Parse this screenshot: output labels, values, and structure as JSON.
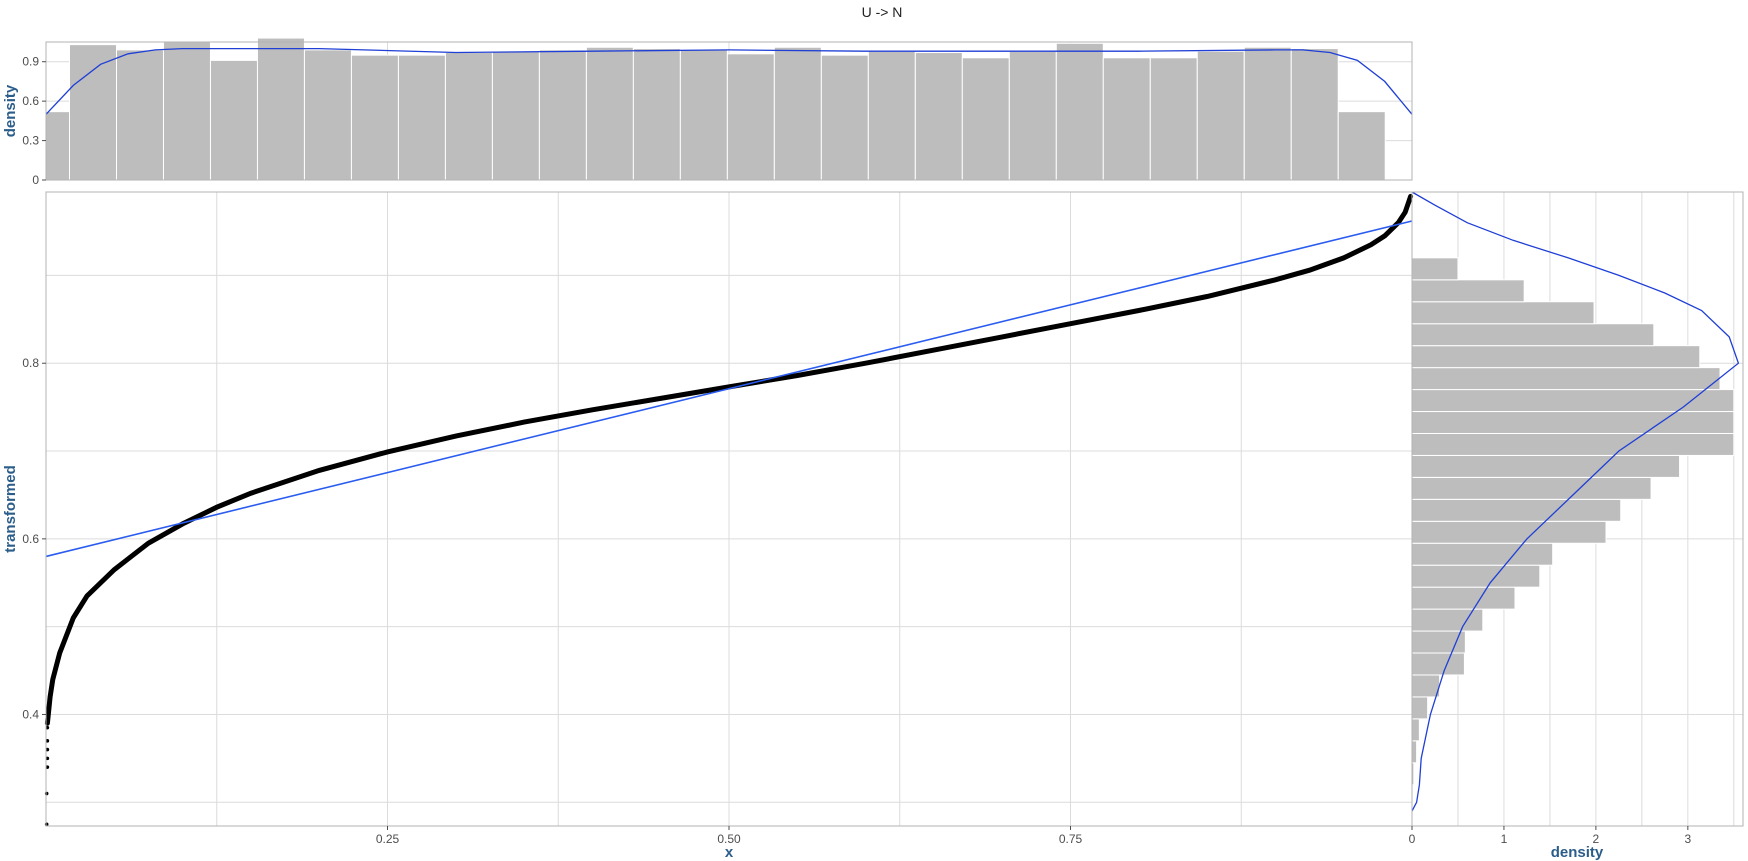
{
  "chart_data": [
    {
      "id": "top-histogram",
      "type": "bar",
      "title": "U -> N",
      "xlabel": "",
      "ylabel": "density",
      "xlim": [
        0,
        1
      ],
      "ylim": [
        0,
        1.05
      ],
      "yticks": [
        "0",
        "0.3",
        "0.6",
        "0.9"
      ],
      "ytick_values": [
        0,
        0.3,
        0.6,
        0.9
      ],
      "bin_width": 0.0344,
      "bin_start": -0.0172,
      "values": [
        0.52,
        1.03,
        0.99,
        1.05,
        0.91,
        1.08,
        0.99,
        0.95,
        0.95,
        0.97,
        0.98,
        0.99,
        1.01,
        1.0,
        0.99,
        0.96,
        1.01,
        0.95,
        0.98,
        0.97,
        0.93,
        0.98,
        1.04,
        0.93,
        0.93,
        0.98,
        1.01,
        1.0,
        0.52
      ],
      "density_x": [
        0,
        0.02,
        0.04,
        0.06,
        0.08,
        0.1,
        0.2,
        0.3,
        0.4,
        0.5,
        0.6,
        0.7,
        0.8,
        0.9,
        0.92,
        0.94,
        0.96,
        0.98,
        1.0
      ],
      "density_y": [
        0.5,
        0.72,
        0.88,
        0.96,
        0.99,
        1.0,
        1.0,
        0.97,
        0.98,
        0.99,
        0.98,
        0.98,
        0.98,
        0.99,
        0.99,
        0.97,
        0.91,
        0.75,
        0.5
      ]
    },
    {
      "id": "main-scatter",
      "type": "scatter",
      "title": "",
      "xlabel": "x",
      "ylabel": "transformed",
      "xlim": [
        0,
        1
      ],
      "ylim": [
        0.273,
        0.995
      ],
      "xticks": [
        "0.25",
        "0.50",
        "0.75"
      ],
      "xtick_values": [
        0.25,
        0.5,
        0.75
      ],
      "yticks": [
        "0.4",
        "0.6",
        "0.8"
      ],
      "ytick_values": [
        0.4,
        0.6,
        0.8
      ],
      "curve_x": [
        0.001,
        0.003,
        0.005,
        0.01,
        0.02,
        0.03,
        0.05,
        0.075,
        0.1,
        0.125,
        0.15,
        0.2,
        0.25,
        0.3,
        0.35,
        0.4,
        0.45,
        0.5,
        0.55,
        0.6,
        0.65,
        0.7,
        0.75,
        0.8,
        0.85,
        0.9,
        0.925,
        0.95,
        0.97,
        0.98,
        0.99,
        0.995,
        0.999
      ],
      "curve_y": [
        0.39,
        0.42,
        0.44,
        0.47,
        0.51,
        0.535,
        0.565,
        0.595,
        0.617,
        0.636,
        0.652,
        0.678,
        0.699,
        0.717,
        0.733,
        0.747,
        0.76,
        0.773,
        0.786,
        0.8,
        0.815,
        0.83,
        0.845,
        0.86,
        0.876,
        0.895,
        0.906,
        0.92,
        0.935,
        0.945,
        0.96,
        0.972,
        0.99
      ],
      "sparse_points_x": [
        0.001,
        0.001,
        0.001,
        0.001,
        0.001,
        0.0005,
        0.0005
      ],
      "sparse_points_y": [
        0.385,
        0.37,
        0.36,
        0.35,
        0.34,
        0.31,
        0.275
      ],
      "fit_x": [
        0,
        1
      ],
      "fit_y": [
        0.58,
        0.962
      ]
    },
    {
      "id": "right-histogram",
      "type": "bar",
      "orientation": "horizontal",
      "title": "",
      "xlabel": "density",
      "ylabel": "",
      "xlim": [
        0,
        3.6
      ],
      "xticks": [
        "0",
        "1",
        "2",
        "3"
      ],
      "xtick_values": [
        0,
        1,
        2,
        3
      ],
      "bin_edges": [
        0.295,
        0.32,
        0.345,
        0.37,
        0.395,
        0.42,
        0.445,
        0.47,
        0.495,
        0.52,
        0.545,
        0.57,
        0.595,
        0.62,
        0.645,
        0.67,
        0.695,
        0.72,
        0.745,
        0.77,
        0.795,
        0.82,
        0.845,
        0.87,
        0.895,
        0.92,
        0.945,
        0.97,
        0.995
      ],
      "values": [
        0.0,
        0.02,
        0.05,
        0.08,
        0.17,
        0.3,
        0.57,
        0.58,
        0.77,
        1.12,
        1.39,
        1.53,
        2.11,
        2.27,
        2.6,
        2.91,
        3.5,
        3.5,
        3.5,
        3.35,
        3.13,
        2.63,
        1.98,
        1.22,
        0.5,
        0.0,
        0.0,
        0.0
      ],
      "density_y": [
        0.29,
        0.3,
        0.32,
        0.35,
        0.4,
        0.45,
        0.5,
        0.55,
        0.6,
        0.65,
        0.7,
        0.75,
        0.8,
        0.83,
        0.86,
        0.88,
        0.9,
        0.92,
        0.94,
        0.96,
        0.98,
        0.995
      ],
      "density_x": [
        0.0,
        0.05,
        0.08,
        0.1,
        0.2,
        0.35,
        0.55,
        0.85,
        1.25,
        1.75,
        2.25,
        2.95,
        3.55,
        3.45,
        3.15,
        2.75,
        2.25,
        1.7,
        1.1,
        0.6,
        0.25,
        0.0
      ]
    }
  ]
}
